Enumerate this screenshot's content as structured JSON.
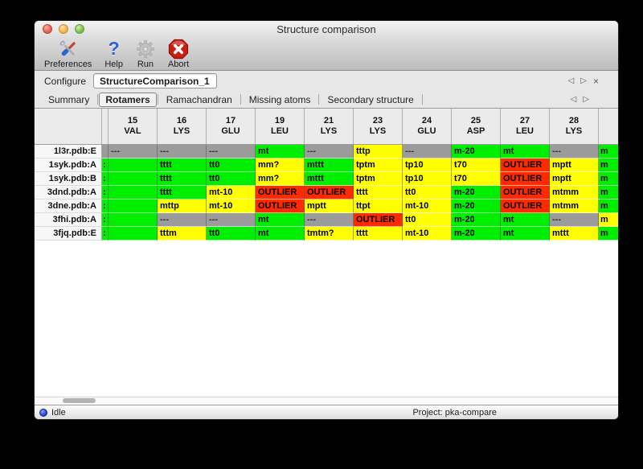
{
  "window": {
    "title": "Structure comparison"
  },
  "toolbar": {
    "buttons": [
      {
        "name": "preferences",
        "label": "Preferences"
      },
      {
        "name": "help",
        "label": "Help"
      },
      {
        "name": "run",
        "label": "Run"
      },
      {
        "name": "abort",
        "label": "Abort"
      }
    ]
  },
  "configure": {
    "label": "Configure",
    "value": "StructureComparison_1",
    "nav": {
      "prev": "◁",
      "next": "▷",
      "close": "×"
    }
  },
  "tabs": {
    "items": [
      {
        "label": "Summary",
        "selected": false
      },
      {
        "label": "Rotamers",
        "selected": true
      },
      {
        "label": "Ramachandran",
        "selected": false
      },
      {
        "label": "Missing atoms",
        "selected": false
      },
      {
        "label": "Secondary structure",
        "selected": false
      }
    ],
    "nav": {
      "prev": "◁",
      "next": "▷"
    }
  },
  "colors": {
    "green": "#00ee00",
    "yellow": "#ffff00",
    "red": "#ff2a00",
    "gray": "#9b9b9b"
  },
  "table": {
    "columns": [
      {
        "num": "15",
        "res": "VAL"
      },
      {
        "num": "16",
        "res": "LYS"
      },
      {
        "num": "17",
        "res": "GLU"
      },
      {
        "num": "19",
        "res": "LEU"
      },
      {
        "num": "21",
        "res": "LYS"
      },
      {
        "num": "23",
        "res": "LYS"
      },
      {
        "num": "24",
        "res": "GLU"
      },
      {
        "num": "25",
        "res": "ASP"
      },
      {
        "num": "27",
        "res": "LEU"
      },
      {
        "num": "28",
        "res": "LYS"
      }
    ],
    "rows": [
      {
        "label": "1l3r.pdb:E",
        "left_edge": [
          "",
          "gray"
        ],
        "cells": [
          [
            "---",
            "gray"
          ],
          [
            "---",
            "gray"
          ],
          [
            "---",
            "gray"
          ],
          [
            "mt",
            "green"
          ],
          [
            "---",
            "gray"
          ],
          [
            "tttp",
            "yellow"
          ],
          [
            "---",
            "gray"
          ],
          [
            "m-20",
            "green"
          ],
          [
            "mt",
            "green"
          ],
          [
            "---",
            "gray"
          ]
        ],
        "right_edge": [
          "m",
          "green"
        ]
      },
      {
        "label": "1syk.pdb:A",
        "left_edge": [
          ":",
          "green"
        ],
        "cells": [
          [
            "",
            "green"
          ],
          [
            "tttt",
            "green"
          ],
          [
            "tt0",
            "green"
          ],
          [
            "mm?",
            "yellow"
          ],
          [
            "mttt",
            "green"
          ],
          [
            "tptm",
            "yellow"
          ],
          [
            "tp10",
            "yellow"
          ],
          [
            "t70",
            "yellow"
          ],
          [
            "OUTLIER",
            "red"
          ],
          [
            "mptt",
            "yellow"
          ]
        ],
        "right_edge": [
          "m",
          "green"
        ]
      },
      {
        "label": "1syk.pdb:B",
        "left_edge": [
          ":",
          "green"
        ],
        "cells": [
          [
            "",
            "green"
          ],
          [
            "tttt",
            "green"
          ],
          [
            "tt0",
            "green"
          ],
          [
            "mm?",
            "yellow"
          ],
          [
            "mttt",
            "green"
          ],
          [
            "tptm",
            "yellow"
          ],
          [
            "tp10",
            "yellow"
          ],
          [
            "t70",
            "yellow"
          ],
          [
            "OUTLIER",
            "red"
          ],
          [
            "mptt",
            "yellow"
          ]
        ],
        "right_edge": [
          "m",
          "green"
        ]
      },
      {
        "label": "3dnd.pdb:A",
        "left_edge": [
          ":",
          "green"
        ],
        "cells": [
          [
            "",
            "green"
          ],
          [
            "tttt",
            "green"
          ],
          [
            "mt-10",
            "yellow"
          ],
          [
            "OUTLIER",
            "red"
          ],
          [
            "OUTLIER",
            "red"
          ],
          [
            "tttt",
            "yellow"
          ],
          [
            "tt0",
            "yellow"
          ],
          [
            "m-20",
            "green"
          ],
          [
            "OUTLIER",
            "red"
          ],
          [
            "mtmm",
            "yellow"
          ]
        ],
        "right_edge": [
          "m",
          "green"
        ]
      },
      {
        "label": "3dne.pdb:A",
        "left_edge": [
          ":",
          "green"
        ],
        "cells": [
          [
            "",
            "green"
          ],
          [
            "mttp",
            "yellow"
          ],
          [
            "mt-10",
            "yellow"
          ],
          [
            "OUTLIER",
            "red"
          ],
          [
            "mptt",
            "yellow"
          ],
          [
            "ttpt",
            "yellow"
          ],
          [
            "mt-10",
            "yellow"
          ],
          [
            "m-20",
            "green"
          ],
          [
            "OUTLIER",
            "red"
          ],
          [
            "mtmm",
            "yellow"
          ]
        ],
        "right_edge": [
          "m",
          "green"
        ]
      },
      {
        "label": "3fhi.pdb:A",
        "left_edge": [
          ":",
          "green"
        ],
        "cells": [
          [
            "",
            "green"
          ],
          [
            "---",
            "gray"
          ],
          [
            "---",
            "gray"
          ],
          [
            "mt",
            "green"
          ],
          [
            "---",
            "gray"
          ],
          [
            "OUTLIER",
            "red"
          ],
          [
            "tt0",
            "yellow"
          ],
          [
            "m-20",
            "green"
          ],
          [
            "mt",
            "green"
          ],
          [
            "---",
            "gray"
          ]
        ],
        "right_edge": [
          "m",
          "yellow"
        ]
      },
      {
        "label": "3fjq.pdb:E",
        "left_edge": [
          ":",
          "green"
        ],
        "cells": [
          [
            "",
            "green"
          ],
          [
            "tttm",
            "yellow"
          ],
          [
            "tt0",
            "green"
          ],
          [
            "mt",
            "green"
          ],
          [
            "tmtm?",
            "yellow"
          ],
          [
            "tttt",
            "yellow"
          ],
          [
            "mt-10",
            "yellow"
          ],
          [
            "m-20",
            "green"
          ],
          [
            "mt",
            "green"
          ],
          [
            "mttt",
            "yellow"
          ]
        ],
        "right_edge": [
          "m",
          "green"
        ]
      }
    ]
  },
  "statusbar": {
    "status": "Idle",
    "project": "Project: pka-compare"
  }
}
